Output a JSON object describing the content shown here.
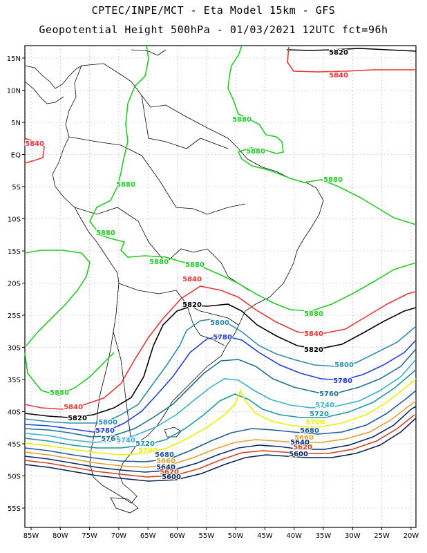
{
  "title_line1": "CPTEC/INPE/MCT -  Eta Model 15km - GFS",
  "title_line2": "Geopotential Height 500hPa - 01/03/2021 12UTC fct=96h",
  "lat_labels": [
    "15N",
    "10N",
    "5N",
    "EQ",
    "5S",
    "10S",
    "15S",
    "20S",
    "25S",
    "30S",
    "35S",
    "40S",
    "45S",
    "50S",
    "55S"
  ],
  "lon_labels": [
    "85W",
    "80W",
    "75W",
    "70W",
    "65W",
    "60W",
    "55W",
    "50W",
    "45W",
    "40W",
    "35W",
    "30W",
    "25W",
    "20W"
  ],
  "colors": {
    "c5880": "#22cc22",
    "c5840": "#ee3333",
    "c5820": "#000000",
    "c5800": "#2b8cb0",
    "c5780": "#1f3fdd",
    "c5760": "#1c6f95",
    "c5740": "#3aaed0",
    "c5720": "#1b95a0",
    "c5700": "#eeee00",
    "c5680": "#1c5a9a",
    "c5660": "#e0a030",
    "c5640": "#0a2a70",
    "c5620": "#d04020",
    "c5600": "#0a1f55",
    "coast": "#000000"
  },
  "contour_labels": [
    {
      "text": "5820",
      "color": "c5820"
    },
    {
      "text": "5840",
      "color": "c5840"
    },
    {
      "text": "5840",
      "color": "c5840"
    },
    {
      "text": "5880",
      "color": "c5880"
    },
    {
      "text": "5880",
      "color": "c5880"
    },
    {
      "text": "5880",
      "color": "c5880"
    },
    {
      "text": "5880",
      "color": "c5880"
    },
    {
      "text": "5880",
      "color": "c5880"
    },
    {
      "text": "5880",
      "color": "c5880"
    },
    {
      "text": "5880",
      "color": "c5880"
    },
    {
      "text": "5840",
      "color": "c5840"
    },
    {
      "text": "5820",
      "color": "c5820"
    },
    {
      "text": "5880",
      "color": "c5880"
    },
    {
      "text": "5840",
      "color": "c5840"
    },
    {
      "text": "5820",
      "color": "c5820"
    },
    {
      "text": "5800",
      "color": "c5800"
    },
    {
      "text": "5780",
      "color": "c5780"
    },
    {
      "text": "5800",
      "color": "c5800"
    },
    {
      "text": "5780",
      "color": "c5780"
    },
    {
      "text": "5760",
      "color": "c5760"
    },
    {
      "text": "5740",
      "color": "c5740"
    },
    {
      "text": "5720",
      "color": "c5720"
    },
    {
      "text": "5700",
      "color": "c5700"
    },
    {
      "text": "5680",
      "color": "c5680"
    },
    {
      "text": "5660",
      "color": "c5660"
    },
    {
      "text": "5640",
      "color": "c5640"
    },
    {
      "text": "5620",
      "color": "c5620"
    },
    {
      "text": "5600",
      "color": "c5600"
    },
    {
      "text": "5880",
      "color": "c5880"
    },
    {
      "text": "5840",
      "color": "c5840"
    },
    {
      "text": "5820",
      "color": "c5820"
    },
    {
      "text": "5800",
      "color": "c5800"
    },
    {
      "text": "5780",
      "color": "c5780"
    },
    {
      "text": "5760",
      "color": "c5760"
    },
    {
      "text": "5740",
      "color": "c5740"
    },
    {
      "text": "5720",
      "color": "c5720"
    },
    {
      "text": "5700",
      "color": "c5700"
    },
    {
      "text": "5680",
      "color": "c5680"
    },
    {
      "text": "5660",
      "color": "c5660"
    },
    {
      "text": "5640",
      "color": "c5640"
    },
    {
      "text": "5620",
      "color": "c5620"
    },
    {
      "text": "5600",
      "color": "c5600"
    }
  ]
}
